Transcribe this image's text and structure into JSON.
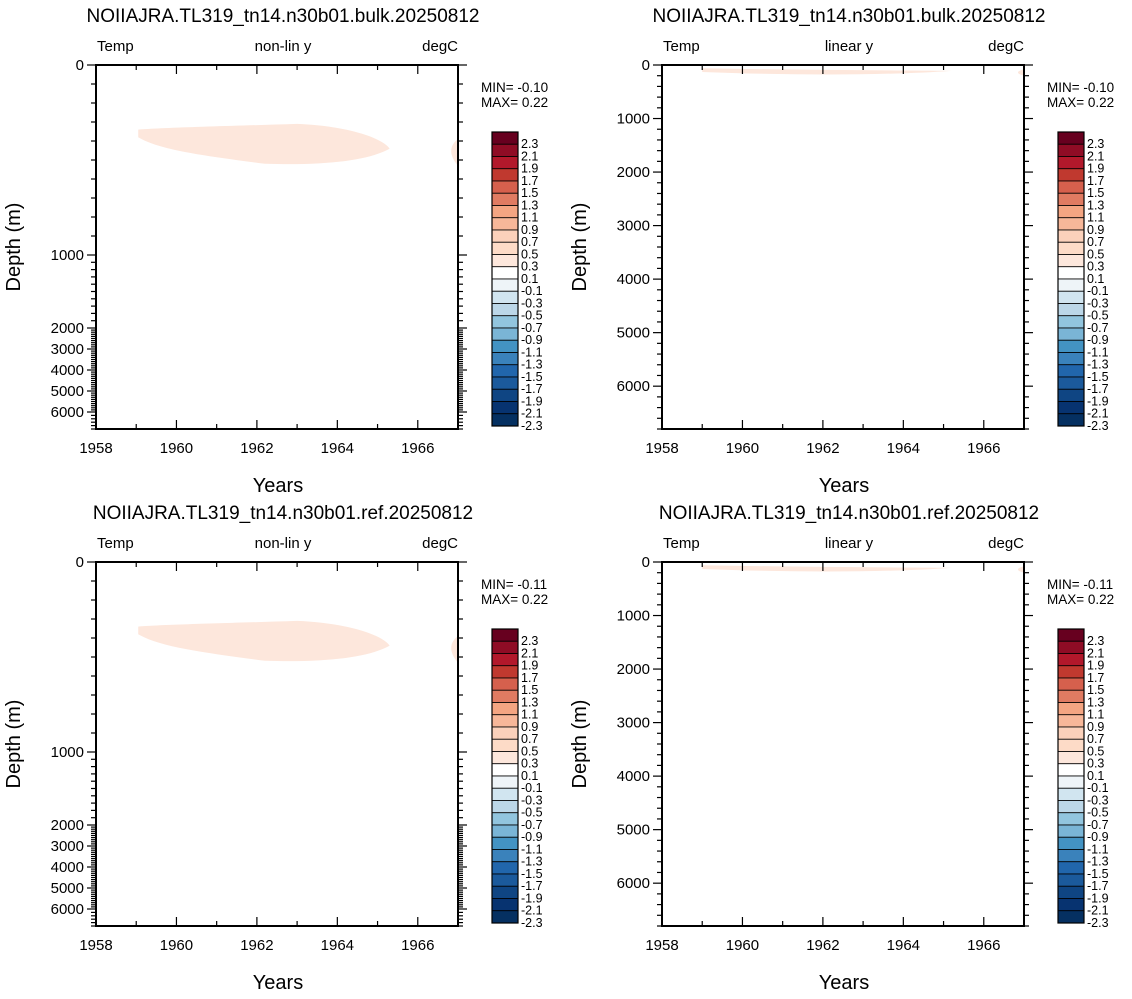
{
  "colorbar": {
    "labels": [
      "2.3",
      "2.1",
      "1.9",
      "1.7",
      "1.5",
      "1.3",
      "1.1",
      "0.9",
      "0.7",
      "0.5",
      "0.3",
      "0.1",
      "-0.1",
      "-0.3",
      "-0.5",
      "-0.7",
      "-0.9",
      "-1.1",
      "-1.3",
      "-1.5",
      "-1.7",
      "-1.9",
      "-2.1",
      "-2.3"
    ],
    "colors": [
      "#67001f",
      "#8f0c25",
      "#b2182b",
      "#c0392f",
      "#d6604d",
      "#e07b62",
      "#f4a582",
      "#f7b799",
      "#fbd1bb",
      "#fddbc7",
      "#fde7dc",
      "#ffffff",
      "#eef4f8",
      "#d1e5f0",
      "#bcd7e8",
      "#92c5de",
      "#7ab5d6",
      "#4393c3",
      "#3a82bb",
      "#2166ac",
      "#1b5a9c",
      "#0f4583",
      "#073370",
      "#053061"
    ]
  },
  "fill_color": "#fde7dc",
  "chart_data": [
    {
      "type": "heatmap",
      "title": "NOIIAJRA.TL319_tn14.n30b01.bulk.20250812",
      "left_label": "Temp",
      "center_label": "non-lin y",
      "right_label": "degC",
      "xlabel": "Years",
      "ylabel": "Depth (m)",
      "xlim": [
        1958,
        1967
      ],
      "x_ticks": [
        "1958",
        "1960",
        "1962",
        "1964",
        "1966"
      ],
      "ylim": [
        0,
        6500
      ],
      "y_scale": "non-linear",
      "y_ticks": [
        "0",
        "1000",
        "2000",
        "3000",
        "4000",
        "5000",
        "6000"
      ],
      "min_text": "MIN= -0.10",
      "max_text": "MAX=  0.22",
      "feature": "0.1 to 0.3 degC patch between 1959 and 1965 at roughly 330-520 m depth, plus a small patch near 1967"
    },
    {
      "type": "heatmap",
      "title": "NOIIAJRA.TL319_tn14.n30b01.bulk.20250812",
      "left_label": "Temp",
      "center_label": "linear y",
      "right_label": "degC",
      "xlabel": "Years",
      "ylabel": "Depth (m)",
      "xlim": [
        1958,
        1967
      ],
      "x_ticks": [
        "1958",
        "1960",
        "1962",
        "1964",
        "1966"
      ],
      "ylim": [
        0,
        6800
      ],
      "y_scale": "linear",
      "y_ticks": [
        "0",
        "1000",
        "2000",
        "3000",
        "4000",
        "5000",
        "6000"
      ],
      "min_text": "MIN= -0.10",
      "max_text": "MAX=  0.22"
    },
    {
      "type": "heatmap",
      "title": "NOIIAJRA.TL319_tn14.n30b01.ref.20250812",
      "left_label": "Temp",
      "center_label": "non-lin y",
      "right_label": "degC",
      "xlabel": "Years",
      "ylabel": "Depth (m)",
      "xlim": [
        1958,
        1967
      ],
      "x_ticks": [
        "1958",
        "1960",
        "1962",
        "1964",
        "1966"
      ],
      "ylim": [
        0,
        6500
      ],
      "y_scale": "non-linear",
      "y_ticks": [
        "0",
        "1000",
        "2000",
        "3000",
        "4000",
        "5000",
        "6000"
      ],
      "min_text": "MIN= -0.11",
      "max_text": "MAX=  0.22"
    },
    {
      "type": "heatmap",
      "title": "NOIIAJRA.TL319_tn14.n30b01.ref.20250812",
      "left_label": "Temp",
      "center_label": "linear y",
      "right_label": "degC",
      "xlabel": "Years",
      "ylabel": "Depth (m)",
      "xlim": [
        1958,
        1967
      ],
      "x_ticks": [
        "1958",
        "1960",
        "1962",
        "1964",
        "1966"
      ],
      "ylim": [
        0,
        6800
      ],
      "y_scale": "linear",
      "y_ticks": [
        "0",
        "1000",
        "2000",
        "3000",
        "4000",
        "5000",
        "6000"
      ],
      "min_text": "MIN= -0.11",
      "max_text": "MAX=  0.22"
    }
  ]
}
